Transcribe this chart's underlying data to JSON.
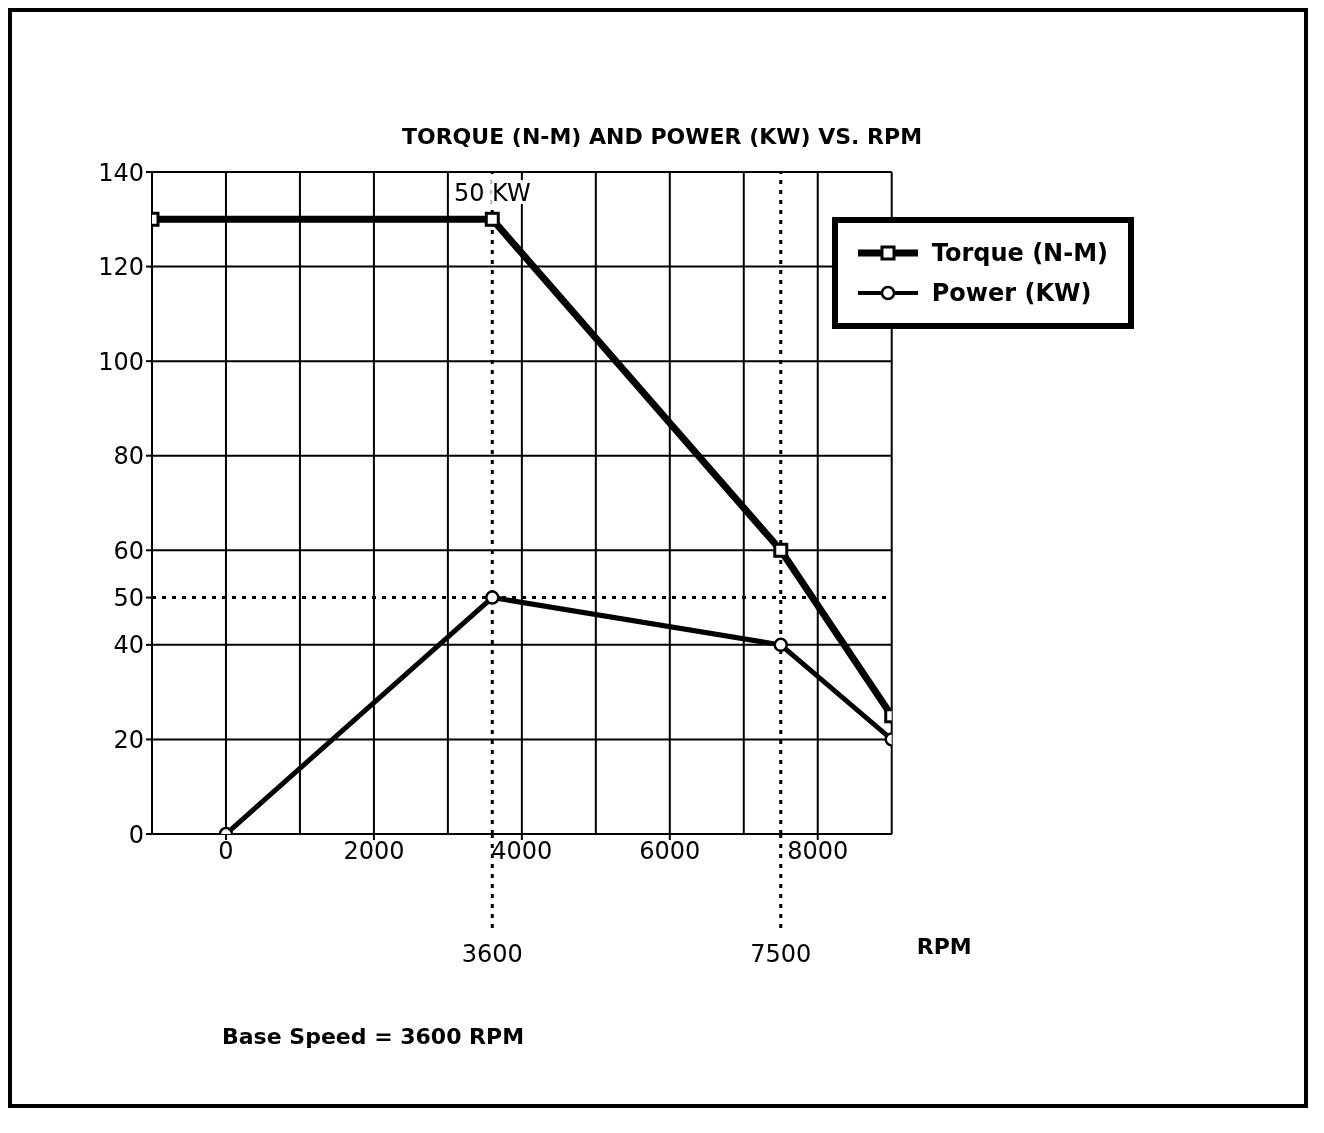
{
  "chart_data": {
    "type": "line",
    "title": "TORQUE (N-M) AND POWER (KW) VS. RPM",
    "xlabel": "RPM",
    "xlim": [
      -1000,
      9000
    ],
    "xticks": [
      0,
      2000,
      4000,
      6000,
      8000
    ],
    "ylim": [
      0,
      140
    ],
    "yticks": [
      0,
      20,
      40,
      50,
      60,
      80,
      100,
      120,
      140
    ],
    "series": [
      {
        "name": "Torque (N-M)",
        "color": "#000000",
        "x": [
          -1000,
          3600,
          7500,
          9000
        ],
        "values": [
          130,
          130,
          60,
          25
        ],
        "marker": "square"
      },
      {
        "name": "Power (KW)",
        "color": "#000000",
        "x": [
          0,
          3600,
          7500,
          9000
        ],
        "values": [
          0,
          50,
          40,
          20
        ],
        "marker": "circle"
      }
    ],
    "ref_lines": [
      {
        "axis": "x",
        "value": 3600,
        "label": "3600",
        "line_style": "dotted",
        "color": "#000000"
      },
      {
        "axis": "x",
        "value": 7500,
        "label": "7500",
        "line_style": "dotted",
        "color": "#000000"
      },
      {
        "axis": "y",
        "value": 50,
        "label": null,
        "line_style": "dotted",
        "color": "#000000"
      }
    ],
    "annotations": [
      {
        "text": "50 KW",
        "x": 3600,
        "y": 130
      },
      "Base Speed = 3600 RPM"
    ],
    "grid": true,
    "legend": "top right"
  }
}
